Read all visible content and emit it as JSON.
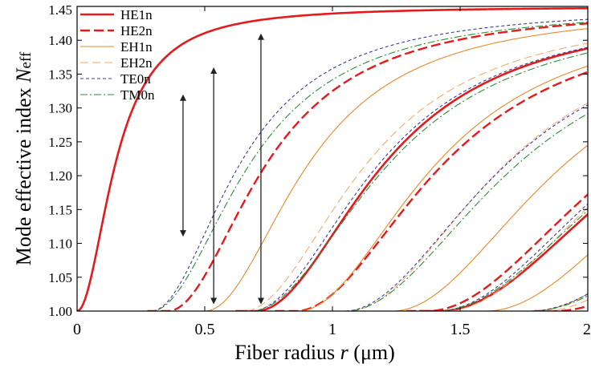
{
  "chart_data": {
    "type": "line",
    "title": "",
    "xlabel_parts": [
      "Fiber radius ",
      "r",
      " (μm)"
    ],
    "ylabel_parts": [
      "Mode effective index ",
      "N",
      "eff"
    ],
    "xlim": [
      0,
      2
    ],
    "ylim": [
      1.0,
      1.45
    ],
    "x_ticks": [
      0,
      0.5,
      1,
      1.5,
      2
    ],
    "x_tick_labels": [
      "0",
      "0.5",
      "1",
      "1.5",
      "2"
    ],
    "y_ticks": [
      1.0,
      1.05,
      1.1,
      1.15,
      1.2,
      1.25,
      1.3,
      1.35,
      1.4,
      1.45
    ],
    "y_tick_labels": [
      "1.00",
      "1.05",
      "1.10",
      "1.15",
      "1.20",
      "1.25",
      "1.30",
      "1.35",
      "1.40",
      "1.45"
    ],
    "grid": false,
    "legend_position": "top-left",
    "n_max": 1.45,
    "n_min": 1.0,
    "series": [
      {
        "name": "HE1n",
        "color": "#e41a1c",
        "dash": "",
        "width": 2.6,
        "curves": [
          {
            "cutoff": 0.0,
            "scale": 0.155
          },
          {
            "cutoff": 0.7,
            "scale": 0.52
          },
          {
            "cutoff": 1.42,
            "scale": 0.85
          }
        ]
      },
      {
        "name": "HE2n",
        "color": "#e41a1c",
        "dash": "12,5",
        "width": 2.4,
        "curves": [
          {
            "cutoff": 0.355,
            "scale": 0.4
          },
          {
            "cutoff": 0.855,
            "scale": 0.6
          },
          {
            "cutoff": 1.37,
            "scale": 0.8
          },
          {
            "cutoff": 1.87,
            "scale": 1.0
          }
        ]
      },
      {
        "name": "EH1n",
        "color": "#e8892c",
        "dash": "",
        "width": 1.1,
        "curves": [
          {
            "cutoff": 0.5,
            "scale": 0.42
          },
          {
            "cutoff": 0.865,
            "scale": 0.56
          },
          {
            "cutoff": 1.235,
            "scale": 0.7
          },
          {
            "cutoff": 1.6,
            "scale": 0.84
          },
          {
            "cutoff": 1.78,
            "scale": 0.9
          }
        ]
      },
      {
        "name": "EH2n",
        "color": "#f2a66a",
        "dash": "10,5",
        "width": 1.0,
        "curves": [
          {
            "cutoff": 0.65,
            "scale": 0.5
          },
          {
            "cutoff": 1.06,
            "scale": 0.64
          },
          {
            "cutoff": 1.44,
            "scale": 0.78
          },
          {
            "cutoff": 1.82,
            "scale": 0.92
          }
        ]
      },
      {
        "name": "TE0n",
        "color": "#3b3b9a",
        "dash": "4,3",
        "width": 1.1,
        "curves": [
          {
            "cutoff": 0.29,
            "scale": 0.36
          },
          {
            "cutoff": 0.68,
            "scale": 0.52
          },
          {
            "cutoff": 1.045,
            "scale": 0.66
          },
          {
            "cutoff": 1.41,
            "scale": 0.8
          },
          {
            "cutoff": 1.77,
            "scale": 0.94
          }
        ]
      },
      {
        "name": "TM0n",
        "color": "#2e8b3a",
        "dash": "9,3,2,3",
        "width": 1.1,
        "curves": [
          {
            "cutoff": 0.29,
            "scale": 0.4
          },
          {
            "cutoff": 0.68,
            "scale": 0.56
          },
          {
            "cutoff": 1.05,
            "scale": 0.7
          },
          {
            "cutoff": 1.41,
            "scale": 0.84
          },
          {
            "cutoff": 1.775,
            "scale": 0.98
          }
        ]
      }
    ],
    "annotations": [
      {
        "type": "double-arrow",
        "x": 0.415,
        "y_from": 1.32,
        "y_to": 1.11
      },
      {
        "type": "double-arrow",
        "x": 0.535,
        "y_from": 1.36,
        "y_to": 1.01
      },
      {
        "type": "double-arrow",
        "x": 0.72,
        "y_from": 1.41,
        "y_to": 1.01
      }
    ]
  }
}
